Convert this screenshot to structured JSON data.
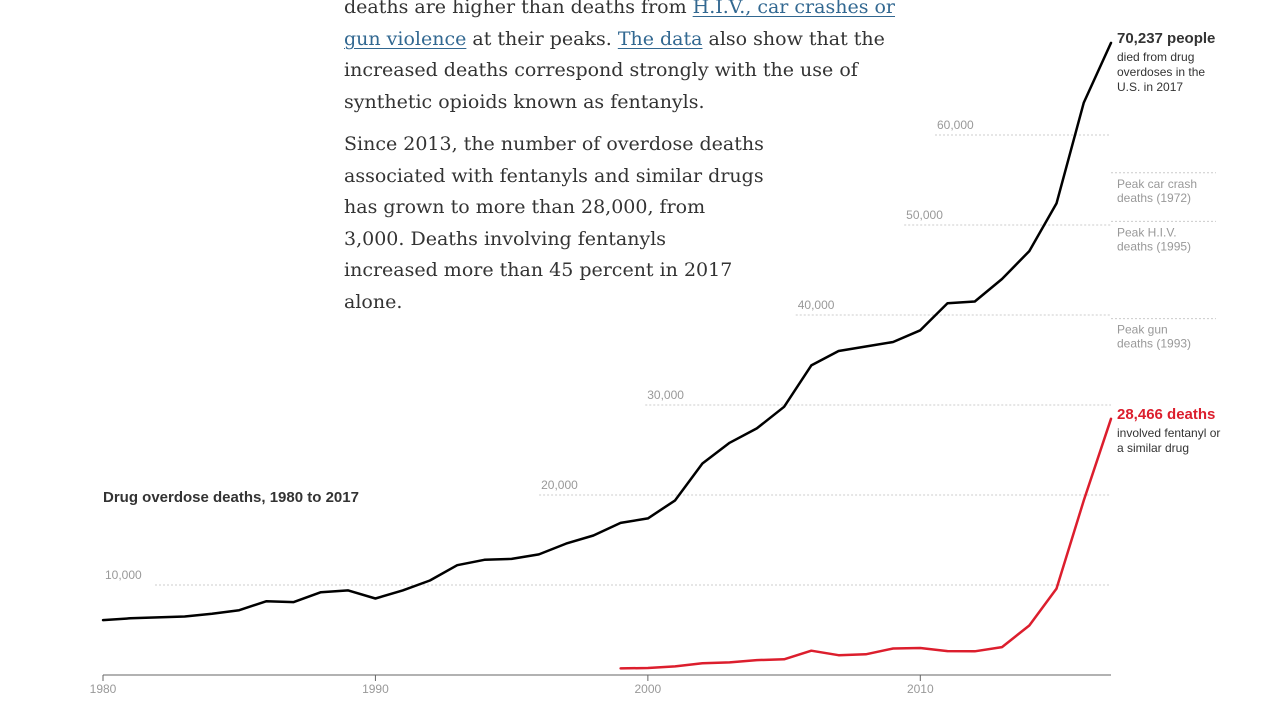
{
  "article": {
    "para1": {
      "text1": "deaths are higher than deaths from ",
      "link1": "H.I.V., car crashes or gun violence",
      "text2": " at their peaks. ",
      "link2": "The data",
      "text3": " also show that the increased deaths correspond strongly with the use of synthetic opioids known as fentanyls."
    },
    "para2": "Since 2013, the number of overdose deaths associated with fentanyls and similar drugs has grown to more than 28,000, from 3,000. Deaths involving fentanyls increased more than 45 percent in 2017 alone."
  },
  "chart_data": {
    "type": "line",
    "title": "Drug overdose deaths, 1980 to 2017",
    "xlim": [
      1980,
      2017
    ],
    "ylim": [
      0,
      72000
    ],
    "grid": true,
    "x_ticks": [
      {
        "value": 1980,
        "label": "1980"
      },
      {
        "value": 1990,
        "label": "1990"
      },
      {
        "value": 2000,
        "label": "2000"
      },
      {
        "value": 2010,
        "label": "2010"
      }
    ],
    "y_ticks": [
      {
        "value": 10000,
        "label": "10,000"
      },
      {
        "value": 20000,
        "label": "20,000"
      },
      {
        "value": 30000,
        "label": "30,000"
      },
      {
        "value": 40000,
        "label": "40,000"
      },
      {
        "value": 50000,
        "label": "50,000"
      },
      {
        "value": 60000,
        "label": "60,000"
      }
    ],
    "series": [
      {
        "color": "#000000",
        "points": [
          [
            1980,
            6100
          ],
          [
            1981,
            6300
          ],
          [
            1982,
            6400
          ],
          [
            1983,
            6500
          ],
          [
            1984,
            6800
          ],
          [
            1985,
            7200
          ],
          [
            1986,
            8200
          ],
          [
            1987,
            8100
          ],
          [
            1988,
            9200
          ],
          [
            1989,
            9400
          ],
          [
            1990,
            8500
          ],
          [
            1991,
            9400
          ],
          [
            1992,
            10500
          ],
          [
            1993,
            12200
          ],
          [
            1994,
            12800
          ],
          [
            1995,
            12900
          ],
          [
            1996,
            13400
          ],
          [
            1997,
            14600
          ],
          [
            1998,
            15500
          ],
          [
            1999,
            16900
          ],
          [
            2000,
            17400
          ],
          [
            2001,
            19400
          ],
          [
            2002,
            23500
          ],
          [
            2003,
            25800
          ],
          [
            2004,
            27400
          ],
          [
            2005,
            29800
          ],
          [
            2006,
            34400
          ],
          [
            2007,
            36000
          ],
          [
            2008,
            36500
          ],
          [
            2009,
            37000
          ],
          [
            2010,
            38300
          ],
          [
            2011,
            41300
          ],
          [
            2012,
            41500
          ],
          [
            2013,
            44000
          ],
          [
            2014,
            47100
          ],
          [
            2015,
            52400
          ],
          [
            2016,
            63600
          ],
          [
            2017,
            70237
          ]
        ]
      },
      {
        "color": "#dc1e2d",
        "points": [
          [
            1999,
            730
          ],
          [
            2000,
            780
          ],
          [
            2001,
            960
          ],
          [
            2002,
            1300
          ],
          [
            2003,
            1400
          ],
          [
            2004,
            1660
          ],
          [
            2005,
            1740
          ],
          [
            2006,
            2700
          ],
          [
            2007,
            2200
          ],
          [
            2008,
            2300
          ],
          [
            2009,
            2950
          ],
          [
            2010,
            3000
          ],
          [
            2011,
            2650
          ],
          [
            2012,
            2630
          ],
          [
            2013,
            3100
          ],
          [
            2014,
            5500
          ],
          [
            2015,
            9600
          ],
          [
            2016,
            19400
          ],
          [
            2017,
            28466
          ]
        ]
      }
    ],
    "reference_lines": [
      {
        "value": 55800,
        "label": "Peak car crash deaths (1972)"
      },
      {
        "value": 50400,
        "label": "Peak H.I.V. deaths (1995)"
      },
      {
        "value": 39600,
        "label": "Peak gun deaths (1993)"
      }
    ],
    "annotations": [
      {
        "value": 70237,
        "headline": "70,237 people",
        "text": "died from drug overdoses in the U.S. in 2017",
        "color": "#333333"
      },
      {
        "value": 28466,
        "headline": "28,466 deaths",
        "text": "involved fentanyl or a similar drug",
        "color": "#dc1e2d"
      }
    ],
    "colors": {
      "grid": "#cccccc",
      "tick_label": "#999999",
      "axis": "#666666",
      "title": "#333333"
    }
  }
}
